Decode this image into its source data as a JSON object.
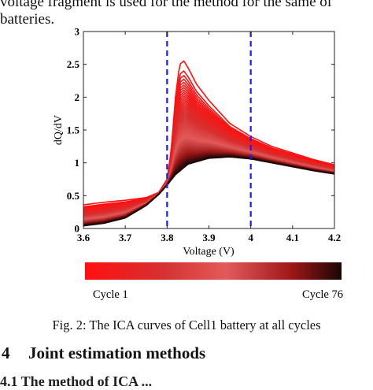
{
  "text": {
    "line1": "voltage fragment is used for the method for the same of",
    "line2": "batteries."
  },
  "figure": {
    "caption": "Fig. 2: The ICA curves of Cell1 battery at all cycles",
    "colorbar": {
      "left_label": "Cycle 1",
      "right_label": "Cycle 76",
      "colors": [
        "#ff1010",
        "#d63030",
        "#e25a5a",
        "#a01818",
        "#1a0606"
      ]
    }
  },
  "section": {
    "number": "4",
    "title": "Joint estimation methods"
  },
  "cutoff_line": "4.1   The method of ICA ...",
  "chart_data": {
    "type": "line",
    "xlabel": "Voltage (V)",
    "ylabel": "dQ/dV",
    "xlim": [
      3.6,
      4.2
    ],
    "ylim": [
      0,
      3
    ],
    "xticks": [
      "3.6",
      "3.7",
      "3.8",
      "3.9",
      "4",
      "4.1",
      "4.2"
    ],
    "yticks": [
      "0",
      "0.5",
      "1",
      "1.5",
      "2",
      "2.5",
      "3"
    ],
    "vertical_lines": [
      3.8,
      4.0
    ],
    "series_count": 76,
    "first_cycle": {
      "x": [
        3.6,
        3.65,
        3.7,
        3.75,
        3.78,
        3.8,
        3.81,
        3.82,
        3.83,
        3.84,
        3.85,
        3.87,
        3.9,
        3.95,
        4.0,
        4.05,
        4.1,
        4.15,
        4.2
      ],
      "y": [
        0.36,
        0.4,
        0.43,
        0.47,
        0.55,
        0.75,
        1.2,
        2.0,
        2.5,
        2.55,
        2.45,
        2.2,
        1.95,
        1.6,
        1.4,
        1.25,
        1.15,
        1.05,
        0.97
      ]
    },
    "last_cycle": {
      "x": [
        3.6,
        3.65,
        3.7,
        3.75,
        3.78,
        3.8,
        3.82,
        3.85,
        3.9,
        3.95,
        4.0,
        4.05,
        4.1,
        4.15,
        4.2
      ],
      "y": [
        0.04,
        0.08,
        0.16,
        0.35,
        0.52,
        0.66,
        0.82,
        0.98,
        1.07,
        1.09,
        1.06,
        1.0,
        0.94,
        0.88,
        0.83
      ]
    }
  }
}
